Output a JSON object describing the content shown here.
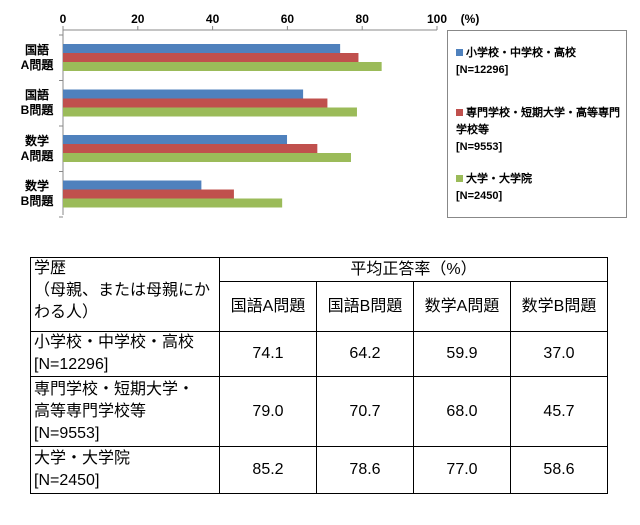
{
  "chart_data": {
    "type": "barh",
    "categories": [
      "国語\nA問題",
      "国語\nB問題",
      "数学\nA問題",
      "数学\nB問題"
    ],
    "series": [
      {
        "name": "小学校・中学校・高校\n[N=12296]",
        "color": "#4f81bd",
        "values": [
          74.1,
          64.2,
          59.9,
          37.0
        ]
      },
      {
        "name": "専門学校・短期大学・高等専門学校等\n[N=9553]",
        "color": "#c0504d",
        "values": [
          79.0,
          70.7,
          68.0,
          45.7
        ]
      },
      {
        "name": "大学・大学院\n[N=2450]",
        "color": "#9bbb59",
        "values": [
          85.2,
          78.6,
          77.0,
          58.6
        ]
      }
    ],
    "xlim": [
      0,
      100
    ],
    "xticks": [
      0,
      20,
      40,
      60,
      80,
      100
    ],
    "x_unit": "(%)",
    "legend": "right"
  },
  "table": {
    "header": {
      "label": "学歴\n（母親、または母親にかわる人）",
      "group": "平均正答率（%）",
      "columns": [
        "国語A問題",
        "国語B問題",
        "数学A問題",
        "数学B問題"
      ]
    },
    "rows": [
      [
        "小学校・中学校・高校\n[N=12296]",
        "74.1",
        "64.2",
        "59.9",
        "37.0"
      ],
      [
        "専門学校・短期大学・\n高等専門学校等\n[N=9553]",
        "79.0",
        "70.7",
        "68.0",
        "45.7"
      ],
      [
        "大学・大学院\n[N=2450]",
        "85.2",
        "78.6",
        "77.0",
        "58.6"
      ]
    ]
  }
}
